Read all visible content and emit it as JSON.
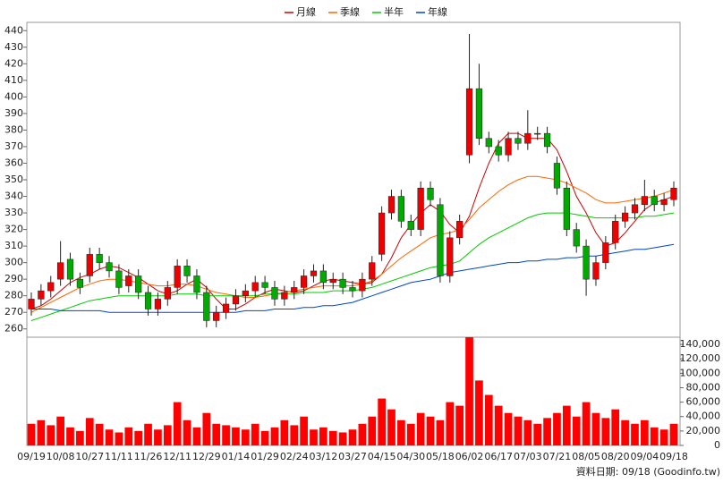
{
  "chart_data": {
    "type": "candlestick",
    "legend_position": "top",
    "source": "資料日期: 09/18 (Goodinfo.tw)",
    "categories": [
      "09/19",
      null,
      null,
      "10/08",
      null,
      null,
      "10/27",
      null,
      null,
      "11/11",
      null,
      null,
      "11/26",
      null,
      null,
      "12/11",
      null,
      null,
      "12/29",
      null,
      null,
      "01/14",
      null,
      null,
      "01/29",
      null,
      null,
      "02/24",
      null,
      null,
      "03/12",
      null,
      null,
      "03/27",
      null,
      null,
      "04/15",
      null,
      null,
      "04/30",
      null,
      null,
      "05/18",
      null,
      null,
      "06/02",
      null,
      null,
      "06/17",
      null,
      null,
      "07/03",
      null,
      null,
      "07/21",
      null,
      null,
      "08/05",
      null,
      null,
      "08/20",
      null,
      null,
      "09/04",
      null,
      null,
      "09/18"
    ],
    "open": [
      272,
      278,
      283,
      290,
      302,
      290,
      292,
      305,
      300,
      295,
      286,
      292,
      282,
      272,
      278,
      285,
      298,
      292,
      282,
      265,
      270,
      275,
      280,
      283,
      288,
      285,
      278,
      282,
      285,
      292,
      295,
      288,
      290,
      285,
      283,
      290,
      305,
      330,
      340,
      325,
      320,
      345,
      335,
      292,
      315,
      365,
      405,
      375,
      370,
      365,
      375,
      372,
      378,
      378,
      360,
      345,
      320,
      310,
      290,
      300,
      312,
      325,
      330,
      335,
      340,
      335,
      338
    ],
    "high": [
      282,
      287,
      292,
      313,
      306,
      294,
      309,
      309,
      304,
      299,
      296,
      296,
      286,
      282,
      289,
      302,
      302,
      296,
      286,
      274,
      279,
      284,
      287,
      292,
      292,
      289,
      286,
      289,
      296,
      299,
      299,
      294,
      294,
      289,
      294,
      304,
      334,
      344,
      344,
      329,
      349,
      349,
      339,
      319,
      329,
      438,
      420,
      379,
      374,
      379,
      379,
      392,
      382,
      382,
      364,
      349,
      324,
      314,
      304,
      316,
      329,
      334,
      339,
      350,
      344,
      342,
      349
    ],
    "low": [
      268,
      274,
      279,
      286,
      286,
      281,
      288,
      296,
      291,
      281,
      282,
      278,
      268,
      268,
      274,
      281,
      288,
      278,
      261,
      261,
      266,
      271,
      276,
      279,
      281,
      274,
      274,
      278,
      281,
      288,
      284,
      284,
      281,
      279,
      279,
      286,
      301,
      326,
      321,
      316,
      316,
      334,
      288,
      288,
      311,
      360,
      371,
      366,
      361,
      361,
      368,
      368,
      374,
      366,
      341,
      316,
      306,
      280,
      286,
      296,
      308,
      321,
      326,
      331,
      331,
      331,
      334
    ],
    "close": [
      278,
      283,
      288,
      300,
      290,
      285,
      305,
      300,
      295,
      285,
      292,
      282,
      272,
      278,
      285,
      298,
      292,
      282,
      265,
      270,
      275,
      280,
      283,
      288,
      285,
      278,
      282,
      285,
      292,
      295,
      288,
      290,
      285,
      283,
      290,
      300,
      330,
      340,
      325,
      320,
      345,
      338,
      292,
      315,
      325,
      405,
      375,
      370,
      365,
      375,
      372,
      378,
      378,
      370,
      345,
      320,
      310,
      290,
      300,
      312,
      325,
      330,
      335,
      340,
      335,
      338,
      345
    ],
    "up_color": "#ee0000",
    "down_color": "#00aa00",
    "volume": [
      30000,
      35000,
      28000,
      40000,
      25000,
      20000,
      38000,
      30000,
      22000,
      18000,
      25000,
      20000,
      30000,
      22000,
      28000,
      60000,
      35000,
      25000,
      45000,
      30000,
      28000,
      25000,
      22000,
      30000,
      20000,
      25000,
      35000,
      28000,
      40000,
      22000,
      25000,
      20000,
      18000,
      22000,
      30000,
      40000,
      65000,
      50000,
      35000,
      30000,
      45000,
      40000,
      35000,
      60000,
      55000,
      150000,
      90000,
      70000,
      55000,
      45000,
      40000,
      35000,
      30000,
      38000,
      45000,
      55000,
      40000,
      60000,
      45000,
      38000,
      50000,
      35000,
      30000,
      35000,
      25000,
      22000,
      30000
    ],
    "volume_color": "#ff0000",
    "series": [
      {
        "name": "月線",
        "color": "#cc0000",
        "values": [
          272,
          274,
          278,
          283,
          288,
          291,
          293,
          296,
          298,
          297,
          294,
          291,
          287,
          283,
          281,
          283,
          287,
          290,
          285,
          278,
          272,
          272,
          275,
          279,
          282,
          284,
          283,
          282,
          283,
          286,
          289,
          290,
          289,
          288,
          287,
          288,
          293,
          303,
          315,
          323,
          330,
          335,
          331,
          323,
          318,
          328,
          345,
          360,
          372,
          378,
          378,
          375,
          375,
          375,
          368,
          355,
          340,
          330,
          318,
          310,
          312,
          318,
          325,
          332,
          336,
          338,
          340
        ]
      },
      {
        "name": "季線",
        "color": "#ff6600",
        "values": [
          270,
          273,
          276,
          279,
          282,
          285,
          287,
          289,
          290,
          290,
          289,
          288,
          287,
          286,
          286,
          287,
          287,
          286,
          284,
          282,
          281,
          280,
          279,
          279,
          280,
          281,
          282,
          283,
          284,
          285,
          286,
          286,
          286,
          286,
          287,
          289,
          293,
          298,
          303,
          307,
          311,
          315,
          317,
          318,
          320,
          326,
          333,
          338,
          343,
          347,
          350,
          352,
          352,
          351,
          350,
          348,
          345,
          342,
          338,
          336,
          336,
          337,
          338,
          339,
          340,
          342,
          344
        ]
      },
      {
        "name": "半年",
        "color": "#00cc00",
        "values": [
          265,
          267,
          269,
          271,
          273,
          275,
          277,
          278,
          279,
          280,
          280,
          280,
          280,
          280,
          280,
          281,
          281,
          281,
          280,
          280,
          280,
          280,
          280,
          280,
          281,
          281,
          281,
          281,
          282,
          282,
          282,
          283,
          283,
          283,
          284,
          285,
          287,
          289,
          291,
          293,
          295,
          297,
          298,
          299,
          301,
          306,
          311,
          315,
          318,
          321,
          324,
          327,
          329,
          330,
          330,
          330,
          329,
          328,
          327,
          327,
          327,
          327,
          327,
          328,
          328,
          329,
          330
        ]
      },
      {
        "name": "年線",
        "color": "#0044cc",
        "values": [
          272,
          272,
          272,
          271,
          271,
          271,
          271,
          271,
          270,
          270,
          270,
          270,
          270,
          270,
          270,
          270,
          270,
          270,
          270,
          270,
          270,
          270,
          271,
          271,
          271,
          272,
          272,
          272,
          273,
          273,
          274,
          274,
          275,
          276,
          278,
          280,
          282,
          284,
          286,
          288,
          289,
          290,
          292,
          294,
          295,
          296,
          297,
          298,
          299,
          300,
          300,
          301,
          301,
          302,
          302,
          303,
          303,
          304,
          304,
          305,
          306,
          307,
          308,
          308,
          309,
          310,
          311
        ]
      }
    ],
    "ylim": [
      255,
      445
    ],
    "yticks": [
      260,
      270,
      280,
      290,
      300,
      310,
      320,
      330,
      340,
      350,
      360,
      370,
      380,
      390,
      400,
      410,
      420,
      430,
      440
    ],
    "y2lim": [
      0,
      150000
    ],
    "y2ticks": [
      0,
      {
        "value": 20000,
        "label": "20,000"
      },
      {
        "value": 40000,
        "label": "40,000"
      },
      {
        "value": 60000,
        "label": "60,000"
      },
      {
        "value": 80000,
        "label": "80,000"
      },
      {
        "value": 100000,
        "label": "100,000"
      },
      {
        "value": 120000,
        "label": "120,000"
      },
      {
        "value": 140000,
        "label": "140,000"
      }
    ]
  }
}
